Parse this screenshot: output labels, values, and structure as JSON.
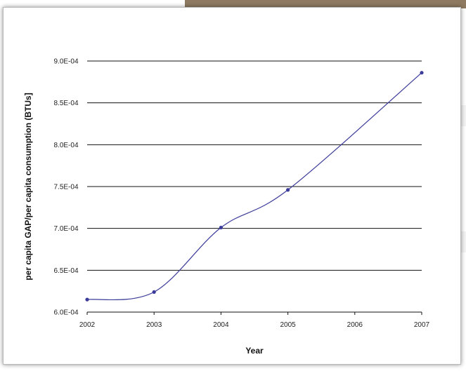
{
  "chart_data": {
    "type": "line",
    "title": "",
    "xlabel": "Year",
    "ylabel": "per capita GAP/per capita consumption (BTUs]",
    "x": [
      2002,
      2003,
      2004,
      2005,
      2007
    ],
    "x_ticks": [
      "2002",
      "2003",
      "2004",
      "2005",
      "2006",
      "2007"
    ],
    "y": [
      0.000615,
      0.000624,
      0.000701,
      0.000746,
      0.000886
    ],
    "y_ticks": [
      "6.0E-04",
      "6.5E-04",
      "7.0E-04",
      "7.5E-04",
      "8.0E-04",
      "8.5E-04",
      "9.0E-04"
    ],
    "y_tick_values": [
      0.0006,
      0.00065,
      0.0007,
      0.00075,
      0.0008,
      0.00085,
      0.0009
    ],
    "xlim": [
      2002,
      2007
    ],
    "ylim": [
      0.0006,
      0.0009
    ],
    "grid": true,
    "legend": "none",
    "colors": {
      "series": "#3b3b9a",
      "grid": "#111111",
      "frame_border": "#b9b9b9",
      "top_bar": "#8e7a60"
    }
  }
}
